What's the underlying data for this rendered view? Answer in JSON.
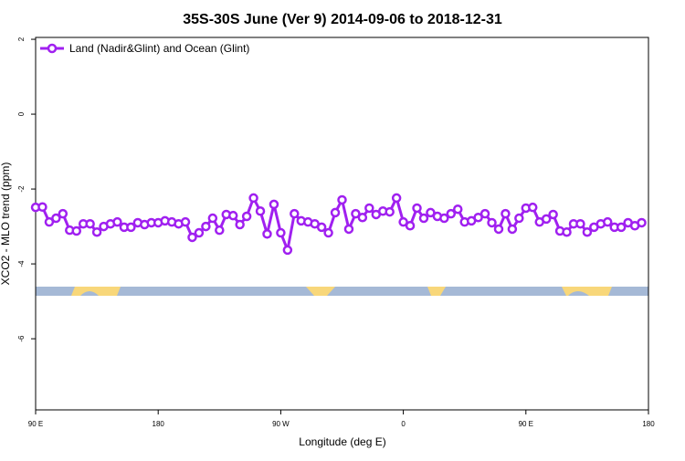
{
  "chart_data": {
    "type": "line",
    "title": "35S-30S June (Ver 9)   2014-09-06 to 2018-12-31",
    "x_label": "Longitude (deg E)",
    "y_label": "XCO2 - MLO trend (ppm)",
    "xlim": [
      90,
      540
    ],
    "xticks": [
      {
        "value": 90,
        "label": "90 E"
      },
      180,
      {
        "value": 270,
        "label": "90 W"
      },
      {
        "value": 360,
        "label": "0"
      },
      {
        "value": 450,
        "label": "90 E"
      },
      {
        "value": 540,
        "label": "180"
      }
    ],
    "ylim": [
      -7.9,
      2.05
    ],
    "yticks": [
      2,
      0,
      -2,
      -4,
      -6
    ],
    "legend": "top-left",
    "x": [
      90,
      95,
      100,
      105,
      110,
      115,
      120,
      125,
      130,
      135,
      140,
      145,
      150,
      155,
      160,
      165,
      170,
      175,
      180,
      185,
      190,
      195,
      200,
      205,
      210,
      215,
      220,
      225,
      230,
      235,
      240,
      245,
      250,
      255,
      260,
      265,
      270,
      275,
      280,
      285,
      290,
      295,
      300,
      305,
      310,
      315,
      320,
      325,
      330,
      335,
      340,
      345,
      350,
      355,
      360,
      365,
      370,
      375,
      380,
      385,
      390,
      395,
      400,
      405,
      410,
      415,
      420,
      425,
      430,
      435,
      440,
      445,
      450,
      455,
      460,
      465,
      470,
      475,
      480,
      485,
      490,
      495,
      500,
      505,
      510,
      515,
      520,
      525,
      530,
      535
    ],
    "series": [
      {
        "name": "Land (Nadir&Glint) and Ocean (Glint)",
        "color": "#a020f0",
        "values": [
          -2.49,
          -2.48,
          -2.88,
          -2.78,
          -2.66,
          -3.1,
          -3.12,
          -2.93,
          -2.93,
          -3.15,
          -3.0,
          -2.93,
          -2.88,
          -3.02,
          -3.02,
          -2.9,
          -2.95,
          -2.9,
          -2.9,
          -2.85,
          -2.88,
          -2.93,
          -2.88,
          -3.29,
          -3.17,
          -3.0,
          -2.78,
          -3.1,
          -2.68,
          -2.71,
          -2.95,
          -2.73,
          -2.24,
          -2.59,
          -3.2,
          -2.41,
          -3.17,
          -3.63,
          -2.66,
          -2.85,
          -2.88,
          -2.93,
          -3.02,
          -3.17,
          -2.63,
          -2.29,
          -3.07,
          -2.66,
          -2.76,
          -2.51,
          -2.68,
          -2.59,
          -2.61,
          -2.24,
          -2.88,
          -2.98,
          -2.51,
          -2.78,
          -2.63,
          -2.73,
          -2.78,
          -2.66,
          -2.54,
          -2.88,
          -2.85,
          -2.76,
          -2.66,
          -2.9,
          -3.07,
          -2.66,
          -3.07,
          -2.78,
          -2.51,
          -2.49,
          -2.88,
          -2.8,
          -2.68,
          -3.12,
          -3.15,
          -2.93,
          -2.93,
          -3.15,
          -3.02,
          -2.93,
          -2.88,
          -3.02,
          -3.02,
          -2.9,
          -2.98,
          -2.9
        ]
      }
    ]
  }
}
